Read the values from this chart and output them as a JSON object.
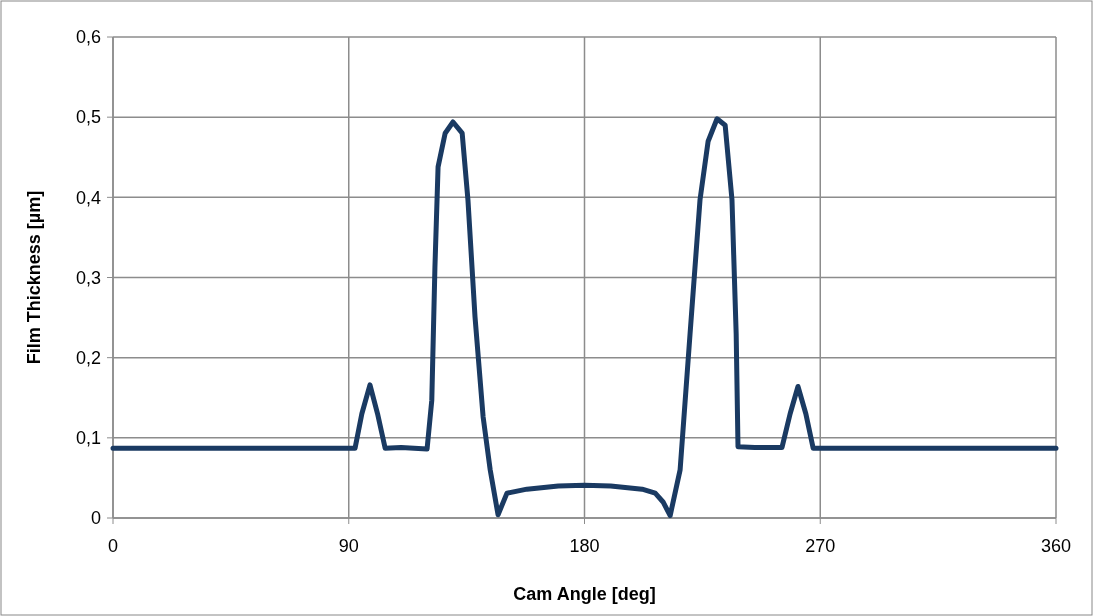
{
  "chart_data": {
    "type": "line",
    "xlabel": "Cam Angle [deg]",
    "ylabel": "Film Thickness [µm]",
    "xlim": [
      0,
      360
    ],
    "xticks": [
      0,
      90,
      180,
      270,
      360
    ],
    "ylim": [
      0,
      0.6
    ],
    "yticks": [
      {
        "value": 0,
        "label": "0"
      },
      {
        "value": 0.1,
        "label": "0,1"
      },
      {
        "value": 0.2,
        "label": "0,2"
      },
      {
        "value": 0.3,
        "label": "0,3"
      },
      {
        "value": 0.4,
        "label": "0,4"
      },
      {
        "value": 0.5,
        "label": "0,5"
      },
      {
        "value": 0.6,
        "label": "0,6"
      }
    ],
    "grid": true,
    "line_style": "solid",
    "series": [
      {
        "color": "#1a3a62",
        "x": [
          0,
          60,
          92.4,
          95,
          98.1,
          101,
          103.9,
          110,
          119.9,
          121.7,
          122.9,
          124.1,
          126.8,
          129.8,
          133.3,
          135.5,
          138.2,
          141.3,
          144,
          147,
          150.4,
          158,
          170,
          180,
          190,
          202,
          207,
          210,
          212.7,
          216.5,
          220.3,
          224.1,
          227.2,
          230.6,
          233.7,
          236.3,
          237.9,
          238.6,
          245,
          255.4,
          258.5,
          261.5,
          264.5,
          267.3,
          300,
          360
        ],
        "values": [
          0.087,
          0.087,
          0.087,
          0.13,
          0.166,
          0.13,
          0.087,
          0.088,
          0.086,
          0.147,
          0.313,
          0.438,
          0.48,
          0.494,
          0.48,
          0.397,
          0.251,
          0.126,
          0.06,
          0.004,
          0.031,
          0.036,
          0.04,
          0.041,
          0.04,
          0.036,
          0.031,
          0.02,
          0.003,
          0.06,
          0.23,
          0.397,
          0.47,
          0.498,
          0.49,
          0.397,
          0.23,
          0.089,
          0.088,
          0.088,
          0.13,
          0.164,
          0.13,
          0.087,
          0.087,
          0.087
        ]
      }
    ]
  }
}
